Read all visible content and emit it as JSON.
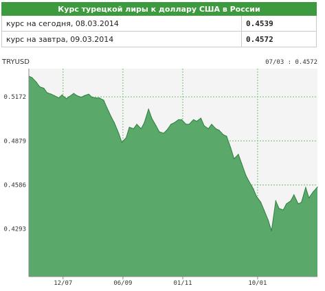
{
  "table": {
    "title": "Курс турецкой лиры к доллару США в России",
    "rows": [
      {
        "label": "курс на сегодня, 08.03.2014",
        "value": "0.4539"
      },
      {
        "label": "курс на завтра, 09.03.2014",
        "value": "0.4572"
      }
    ]
  },
  "colors": {
    "header": "#3e9a3e",
    "fill": "#5aa86a",
    "line": "#2f7f3f",
    "grid": "#6fbf6f"
  },
  "chart_data": {
    "type": "area",
    "symbol": "TRYUSD",
    "last_label": "07/03 : 0.4572",
    "y_ticks": [
      "0.5172",
      "0.4879",
      "0.4586",
      "0.4293"
    ],
    "y_tick_values": [
      0.5172,
      0.4879,
      0.4586,
      0.4293
    ],
    "x_ticks": [
      "12/07",
      "06/09",
      "01/11",
      "10/01"
    ],
    "ylim": [
      0.3976,
      0.536
    ],
    "x_range": [
      "2013-06-10",
      "2014-03-07"
    ],
    "grid": true,
    "series": [
      {
        "x": [
          "2013-06-10",
          "2013-06-13",
          "2013-06-17",
          "2013-06-20",
          "2013-06-24",
          "2013-06-27",
          "2013-07-01",
          "2013-07-04",
          "2013-07-08",
          "2013-07-11",
          "2013-07-15",
          "2013-07-18",
          "2013-07-22",
          "2013-07-25",
          "2013-07-29",
          "2013-08-01",
          "2013-08-05",
          "2013-08-08",
          "2013-08-12",
          "2013-08-15",
          "2013-08-19",
          "2013-08-22",
          "2013-08-26",
          "2013-08-29",
          "2013-09-02",
          "2013-09-05",
          "2013-09-09",
          "2013-09-12",
          "2013-09-16",
          "2013-09-19",
          "2013-09-23",
          "2013-09-26",
          "2013-09-30",
          "2013-10-03",
          "2013-10-07",
          "2013-10-10",
          "2013-10-14",
          "2013-10-17",
          "2013-10-21",
          "2013-10-24",
          "2013-10-28",
          "2013-10-31",
          "2013-11-04",
          "2013-11-07",
          "2013-11-11",
          "2013-11-14",
          "2013-11-18",
          "2013-11-21",
          "2013-11-25",
          "2013-11-28",
          "2013-12-02",
          "2013-12-05",
          "2013-12-09",
          "2013-12-12",
          "2013-12-16",
          "2013-12-19",
          "2013-12-23",
          "2013-12-26",
          "2013-12-30",
          "2014-01-02",
          "2014-01-06",
          "2014-01-09",
          "2014-01-13",
          "2014-01-16",
          "2014-01-20",
          "2014-01-23",
          "2014-01-27",
          "2014-01-30",
          "2014-02-03",
          "2014-02-06",
          "2014-02-10",
          "2014-02-13",
          "2014-02-17",
          "2014-02-20",
          "2014-02-24",
          "2014-02-27",
          "2014-03-03",
          "2014-03-07"
        ],
        "values": [
          0.531,
          0.53,
          0.527,
          0.524,
          0.523,
          0.52,
          0.519,
          0.518,
          0.5165,
          0.5185,
          0.516,
          0.5175,
          0.5195,
          0.518,
          0.517,
          0.518,
          0.519,
          0.517,
          0.5165,
          0.5165,
          0.515,
          0.51,
          0.504,
          0.5,
          0.493,
          0.487,
          0.49,
          0.497,
          0.496,
          0.499,
          0.496,
          0.5,
          0.509,
          0.503,
          0.498,
          0.494,
          0.493,
          0.495,
          0.499,
          0.5,
          0.502,
          0.502,
          0.499,
          0.499,
          0.502,
          0.501,
          0.503,
          0.498,
          0.496,
          0.499,
          0.496,
          0.495,
          0.492,
          0.491,
          0.483,
          0.476,
          0.479,
          0.473,
          0.465,
          0.461,
          0.456,
          0.451,
          0.447,
          0.442,
          0.435,
          0.428,
          0.448,
          0.443,
          0.442,
          0.446,
          0.448,
          0.452,
          0.446,
          0.447,
          0.457,
          0.45,
          0.454,
          0.4572
        ]
      }
    ]
  }
}
